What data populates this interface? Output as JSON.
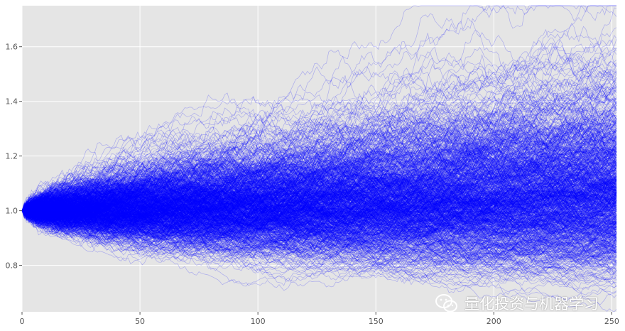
{
  "chart_data": {
    "type": "line",
    "title": "",
    "xlabel": "",
    "ylabel": "",
    "xlim": [
      0,
      252
    ],
    "ylim": [
      0.63,
      1.75
    ],
    "xticks": [
      0,
      50,
      100,
      150,
      200,
      250
    ],
    "yticks": [
      0.8,
      1.0,
      1.2,
      1.4,
      1.6
    ],
    "xtick_labels": [
      "0",
      "50",
      "100",
      "150",
      "200",
      "250"
    ],
    "ytick_labels": [
      "0.8",
      "1.0",
      "1.2",
      "1.4",
      "1.6"
    ],
    "grid": true,
    "style": "ggplot",
    "n_steps": 252,
    "n_paths": 1000,
    "start_value": 1.0,
    "drift_annual": 0.08,
    "volatility_annual": 0.16,
    "line_color": "#0000ff",
    "line_alpha": 0.25,
    "background_color": "#e5e5e5",
    "grid_color": "#ffffff",
    "envelope_approx": {
      "x": [
        0,
        50,
        100,
        150,
        200,
        250
      ],
      "upper": [
        1.0,
        1.27,
        1.32,
        1.45,
        1.55,
        1.7
      ],
      "lower": [
        1.0,
        0.82,
        0.77,
        0.74,
        0.7,
        0.68
      ]
    }
  },
  "watermark": {
    "text": "量化投资与机器学习",
    "icon": "wechat-icon"
  }
}
